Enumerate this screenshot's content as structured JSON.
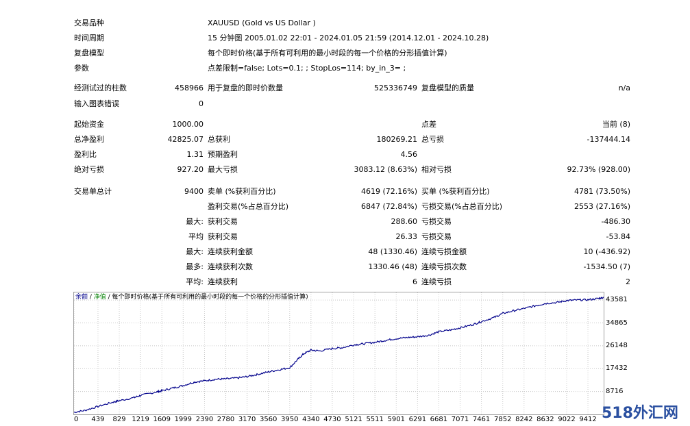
{
  "header": {
    "symbol_label": "交易品种",
    "symbol_value": "XAUUSD (Gold vs US Dollar )",
    "period_label": "时间周期",
    "period_value": "15 分钟图 2005.01.02 22:01 - 2024.01.05 21:59 (2014.12.01 - 2024.10.28)",
    "model_label": "复盘模型",
    "model_value": "每个即时价格(基于所有可利用的最小时段的每一个价格的分形插值计算)",
    "params_label": "参数",
    "params_value": "点差限制=false; Lots=0.1; ; StopLos=114; by_in_3= ;"
  },
  "bars": {
    "bars_label": "经测试过的柱数",
    "bars_value": "458966",
    "ticks_label": "用于复盘的即时价数量",
    "ticks_value": "525336749",
    "quality_label": "复盘模型的质量",
    "quality_value": "n/a",
    "errors_label": "输入图表错误",
    "errors_value": "0"
  },
  "summary": {
    "deposit_label": "起始资金",
    "deposit_value": "1000.00",
    "spread_label": "点差",
    "spread_value": "当前 (8)",
    "net_label": "总净盈利",
    "net_value": "42825.07",
    "gross_profit_label": "总获利",
    "gross_profit_value": "180269.21",
    "gross_loss_label": "总亏损",
    "gross_loss_value": "-137444.14",
    "pf_label": "盈利比",
    "pf_value": "1.31",
    "expected_label": "预期盈利",
    "expected_value": "4.56",
    "abs_dd_label": "绝对亏损",
    "abs_dd_value": "927.20",
    "max_dd_label": "最大亏损",
    "max_dd_value": "3083.12 (8.63%)",
    "rel_dd_label": "相对亏损",
    "rel_dd_value": "92.73% (928.00)"
  },
  "trades": {
    "total_label": "交易单总计",
    "total_value": "9400",
    "short_label": "卖单 (%获利百分比)",
    "short_value": "4619 (72.16%)",
    "long_label": "买单 (%获利百分比)",
    "long_value": "4781 (73.50%)",
    "win_label": "盈利交易(%占总百分比)",
    "win_value": "6847 (72.84%)",
    "loss_label": "亏损交易(%占总百分比)",
    "loss_value": "2553 (27.16%)",
    "max_prefix": "最大:",
    "largest_win_label": "获利交易",
    "largest_win_value": "288.60",
    "largest_loss_label": "亏损交易",
    "largest_loss_value": "-486.30",
    "avg_prefix": "平均",
    "avg_win_label": "获利交易",
    "avg_win_value": "26.33",
    "avg_loss_label": "亏损交易",
    "avg_loss_value": "-53.84",
    "max2_prefix": "最大:",
    "max_cons_win_label": "连续获利金额",
    "max_cons_win_value": "48 (1330.46)",
    "max_cons_loss_label": "连续亏损金额",
    "max_cons_loss_value": "10 (-436.92)",
    "most_prefix": "最多:",
    "most_cons_win_label": "连续获利次数",
    "most_cons_win_value": "1330.46 (48)",
    "most_cons_loss_label": "连续亏损次数",
    "most_cons_loss_value": "-1534.50 (7)",
    "avg2_prefix": "平均:",
    "avg_cons_win_label": "连续获利",
    "avg_cons_win_value": "6",
    "avg_cons_loss_label": "连续亏损",
    "avg_cons_loss_value": "2"
  },
  "chart_data": {
    "type": "line",
    "legend": "余额 / 净值 / 每个即时价格(基于所有可利用的最小时段的每一个价格的分形插值计算)",
    "legend_parts": [
      "余额",
      " / ",
      "净值",
      " / 每个即时价格(基于所有可利用的最小时段的每一个价格的分形插值计算)"
    ],
    "line_color": "#00008b",
    "xlim": [
      0,
      9700
    ],
    "ylim": [
      0,
      46500
    ],
    "x_ticks": [
      "0",
      "439",
      "829",
      "1219",
      "1609",
      "1999",
      "2390",
      "2780",
      "3170",
      "3560",
      "3950",
      "4340",
      "4730",
      "5121",
      "5511",
      "5901",
      "6291",
      "6681",
      "7071",
      "7461",
      "7852",
      "8242",
      "8632",
      "9022",
      "9412"
    ],
    "y_ticks": [
      "43581",
      "34865",
      "26148",
      "17432",
      "8716"
    ],
    "series": [
      {
        "x": [
          0,
          200,
          439,
          700,
          829,
          1100,
          1219,
          1500,
          1609,
          1800,
          1999,
          2200,
          2390,
          2600,
          2780,
          3000,
          3170,
          3350,
          3560,
          3750,
          3950,
          4100,
          4200,
          4340,
          4500,
          4730,
          4900,
          5121,
          5300,
          5511,
          5700,
          5901,
          6100,
          6291,
          6500,
          6681,
          6900,
          7071,
          7300,
          7461,
          7700,
          7852,
          8050,
          8242,
          8450,
          8632,
          8850,
          9022,
          9200,
          9412,
          9600,
          9700
        ],
        "y": [
          800,
          1500,
          3000,
          4600,
          5200,
          6400,
          7200,
          8500,
          9000,
          10000,
          11000,
          12300,
          12800,
          13400,
          13500,
          13900,
          14400,
          15200,
          16200,
          17000,
          17800,
          21000,
          23000,
          24500,
          24200,
          25100,
          25400,
          26500,
          26900,
          27500,
          28200,
          28900,
          29300,
          29600,
          30200,
          31500,
          32200,
          33000,
          34200,
          35400,
          37000,
          38500,
          39500,
          40400,
          41400,
          42300,
          42700,
          43400,
          43600,
          43700,
          44200,
          44600
        ]
      }
    ]
  },
  "watermark": "518外汇网"
}
